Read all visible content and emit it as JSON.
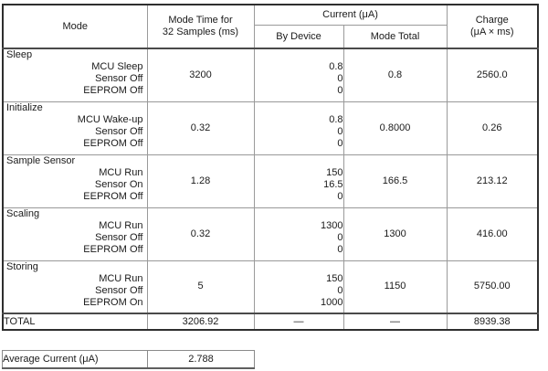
{
  "header": {
    "mode": "Mode",
    "mode_time_line1": "Mode Time for",
    "mode_time_line2": "32 Samples (ms)",
    "current_group": "Current (μA)",
    "by_device": "By Device",
    "mode_total": "Mode Total",
    "charge_line1": "Charge",
    "charge_line2": "(μA × ms)"
  },
  "table": {
    "rows": [
      {
        "mode": "Sleep",
        "devices": [
          "MCU Sleep",
          "Sensor Off",
          "EEPROM Off"
        ],
        "mode_time": "3200",
        "by_device": [
          "0.8",
          "0",
          "0"
        ],
        "mode_total": "0.8",
        "charge": "2560.0"
      },
      {
        "mode": "Initialize",
        "devices": [
          "MCU Wake-up",
          "Sensor Off",
          "EEPROM Off"
        ],
        "mode_time": "0.32",
        "by_device": [
          "0.8",
          "0",
          "0"
        ],
        "mode_total": "0.8000",
        "charge": "0.26"
      },
      {
        "mode": "Sample Sensor",
        "devices": [
          "MCU Run",
          "Sensor On",
          "EEPROM Off"
        ],
        "mode_time": "1.28",
        "by_device": [
          "150",
          "16.5",
          "0"
        ],
        "mode_total": "166.5",
        "charge": "213.12"
      },
      {
        "mode": "Scaling",
        "devices": [
          "MCU Run",
          "Sensor Off",
          "EEPROM Off"
        ],
        "mode_time": "0.32",
        "by_device": [
          "1300",
          "0",
          "0"
        ],
        "mode_total": "1300",
        "charge": "416.00"
      },
      {
        "mode": "Storing",
        "devices": [
          "MCU Run",
          "Sensor Off",
          "EEPROM On"
        ],
        "mode_time": "5",
        "by_device": [
          "150",
          "0",
          "1000"
        ],
        "mode_total": "1150",
        "charge": "5750.00"
      }
    ],
    "total": {
      "label": "TOTAL",
      "mode_time": "3206.92",
      "by_device_dash": "—",
      "mode_total_dash": "—",
      "charge": "8939.38"
    }
  },
  "average": {
    "label": "Average Current (μA)",
    "value": "2.788"
  }
}
